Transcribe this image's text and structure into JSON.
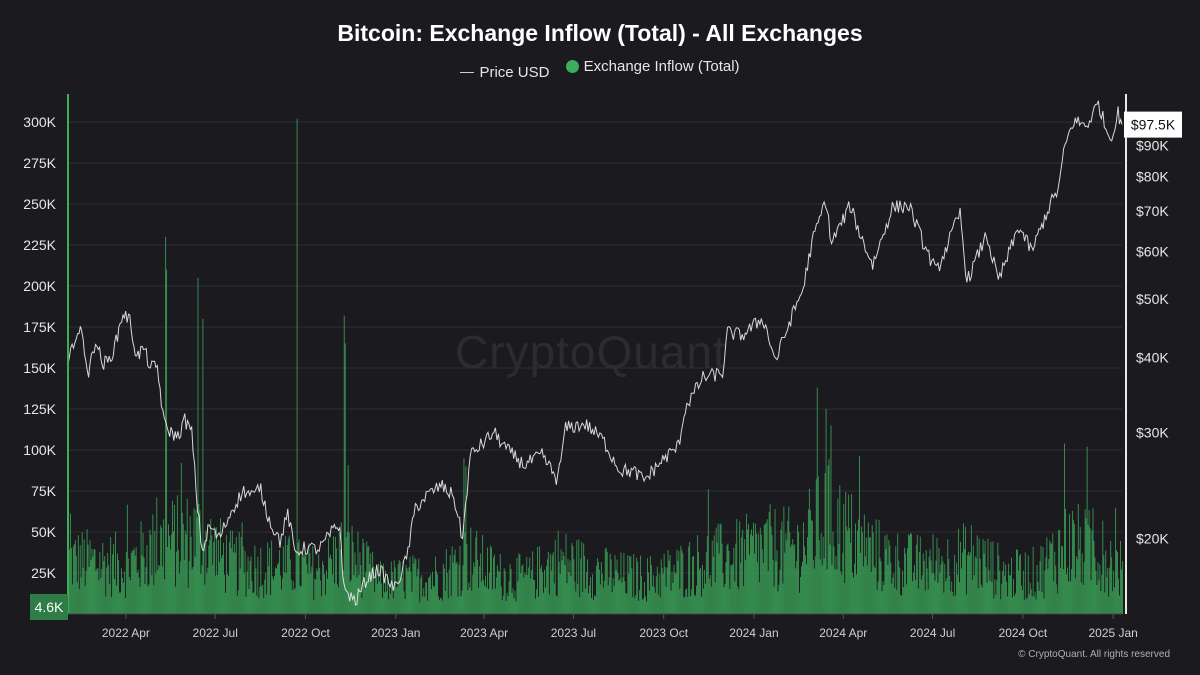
{
  "chart_data": {
    "type": "bar",
    "title": "Bitcoin: Exchange Inflow (Total) - All Exchanges",
    "watermark": "CryptoQuant",
    "footer": "© CryptoQuant. All rights reserved",
    "colors": {
      "background": "#1b1b1f",
      "inflow": "#3dac5c",
      "price": "#e8e8e8",
      "grid": "#2d2d33"
    },
    "x_range": [
      "2022-02-01",
      "2025-01-10"
    ],
    "x_ticks": [
      {
        "date": "2022-04-01",
        "label": "2022 Apr"
      },
      {
        "date": "2022-07-01",
        "label": "2022 Jul"
      },
      {
        "date": "2022-10-01",
        "label": "2022 Oct"
      },
      {
        "date": "2023-01-01",
        "label": "2023 Jan"
      },
      {
        "date": "2023-04-01",
        "label": "2023 Apr"
      },
      {
        "date": "2023-07-01",
        "label": "2023 Jul"
      },
      {
        "date": "2023-10-01",
        "label": "2023 Oct"
      },
      {
        "date": "2024-01-01",
        "label": "2024 Jan"
      },
      {
        "date": "2024-04-01",
        "label": "2024 Apr"
      },
      {
        "date": "2024-07-01",
        "label": "2024 Jul"
      },
      {
        "date": "2024-10-01",
        "label": "2024 Oct"
      },
      {
        "date": "2025-01-01",
        "label": "2025 Jan"
      }
    ],
    "left_axis": {
      "range": [
        0,
        300000
      ],
      "ticks": [
        {
          "value": 25000,
          "label": "25K"
        },
        {
          "value": 50000,
          "label": "50K"
        },
        {
          "value": 75000,
          "label": "75K"
        },
        {
          "value": 100000,
          "label": "100K"
        },
        {
          "value": 125000,
          "label": "125K"
        },
        {
          "value": 150000,
          "label": "150K"
        },
        {
          "value": 175000,
          "label": "175K"
        },
        {
          "value": 200000,
          "label": "200K"
        },
        {
          "value": 225000,
          "label": "225K"
        },
        {
          "value": 250000,
          "label": "250K"
        },
        {
          "value": 275000,
          "label": "275K"
        },
        {
          "value": 300000,
          "label": "300K"
        }
      ]
    },
    "right_axis": {
      "scale": "log",
      "range": [
        15500,
        100000
      ],
      "ticks": [
        {
          "value": 20000,
          "label": "$20K"
        },
        {
          "value": 30000,
          "label": "$30K"
        },
        {
          "value": 40000,
          "label": "$40K"
        },
        {
          "value": 50000,
          "label": "$50K"
        },
        {
          "value": 60000,
          "label": "$60K"
        },
        {
          "value": 70000,
          "label": "$70K"
        },
        {
          "value": 80000,
          "label": "$80K"
        },
        {
          "value": 90000,
          "label": "$90K"
        }
      ]
    },
    "last_values": {
      "inflow": 4600,
      "inflow_label": "4.6K",
      "price": 97500,
      "price_label": "$97.5K"
    },
    "series": [
      {
        "name": "Price USD",
        "type": "line",
        "points": [
          [
            "2022-02-01",
            38500
          ],
          [
            "2022-02-08",
            43500
          ],
          [
            "2022-02-15",
            44000
          ],
          [
            "2022-02-22",
            37500
          ],
          [
            "2022-03-01",
            43000
          ],
          [
            "2022-03-08",
            39000
          ],
          [
            "2022-03-15",
            39500
          ],
          [
            "2022-03-22",
            42500
          ],
          [
            "2022-03-29",
            47500
          ],
          [
            "2022-04-05",
            46000
          ],
          [
            "2022-04-12",
            40000
          ],
          [
            "2022-04-19",
            41500
          ],
          [
            "2022-04-26",
            38500
          ],
          [
            "2022-05-03",
            38500
          ],
          [
            "2022-05-10",
            31000
          ],
          [
            "2022-05-17",
            30000
          ],
          [
            "2022-05-24",
            29500
          ],
          [
            "2022-05-31",
            31500
          ],
          [
            "2022-06-07",
            30000
          ],
          [
            "2022-06-13",
            22500
          ],
          [
            "2022-06-18",
            19000
          ],
          [
            "2022-06-25",
            21000
          ],
          [
            "2022-07-05",
            20000
          ],
          [
            "2022-07-19",
            22500
          ],
          [
            "2022-07-30",
            24000
          ],
          [
            "2022-08-10",
            23500
          ],
          [
            "2022-08-15",
            24500
          ],
          [
            "2022-08-25",
            21500
          ],
          [
            "2022-09-05",
            19800
          ],
          [
            "2022-09-13",
            22000
          ],
          [
            "2022-09-20",
            19000
          ],
          [
            "2022-10-01",
            19300
          ],
          [
            "2022-10-15",
            19200
          ],
          [
            "2022-10-29",
            20600
          ],
          [
            "2022-11-05",
            21000
          ],
          [
            "2022-11-09",
            16500
          ],
          [
            "2022-11-21",
            15700
          ],
          [
            "2022-12-01",
            17000
          ],
          [
            "2022-12-14",
            17800
          ],
          [
            "2022-12-31",
            16500
          ],
          [
            "2023-01-12",
            18500
          ],
          [
            "2023-01-21",
            22500
          ],
          [
            "2023-02-01",
            23500
          ],
          [
            "2023-02-16",
            24500
          ],
          [
            "2023-03-01",
            23500
          ],
          [
            "2023-03-10",
            20000
          ],
          [
            "2023-03-18",
            27500
          ],
          [
            "2023-04-11",
            30000
          ],
          [
            "2023-04-25",
            28000
          ],
          [
            "2023-05-12",
            26500
          ],
          [
            "2023-05-30",
            27500
          ],
          [
            "2023-06-15",
            25000
          ],
          [
            "2023-06-23",
            30500
          ],
          [
            "2023-07-13",
            31000
          ],
          [
            "2023-07-31",
            29200
          ],
          [
            "2023-08-17",
            26000
          ],
          [
            "2023-09-01",
            25800
          ],
          [
            "2023-09-11",
            25000
          ],
          [
            "2023-09-30",
            27000
          ],
          [
            "2023-10-16",
            28500
          ],
          [
            "2023-10-23",
            33000
          ],
          [
            "2023-11-10",
            37000
          ],
          [
            "2023-11-30",
            37700
          ],
          [
            "2023-12-05",
            44000
          ],
          [
            "2023-12-20",
            43500
          ],
          [
            "2024-01-10",
            46500
          ],
          [
            "2024-01-23",
            39500
          ],
          [
            "2024-02-09",
            47000
          ],
          [
            "2024-02-20",
            52000
          ],
          [
            "2024-02-29",
            62000
          ],
          [
            "2024-03-14",
            73000
          ],
          [
            "2024-03-20",
            62000
          ],
          [
            "2024-04-08",
            71500
          ],
          [
            "2024-04-19",
            63500
          ],
          [
            "2024-05-01",
            57000
          ],
          [
            "2024-05-21",
            71000
          ],
          [
            "2024-06-07",
            71500
          ],
          [
            "2024-06-24",
            60500
          ],
          [
            "2024-07-05",
            55500
          ],
          [
            "2024-07-29",
            69500
          ],
          [
            "2024-08-05",
            53500
          ],
          [
            "2024-08-25",
            64000
          ],
          [
            "2024-09-06",
            53500
          ],
          [
            "2024-09-27",
            66000
          ],
          [
            "2024-10-10",
            60000
          ],
          [
            "2024-10-29",
            72000
          ],
          [
            "2024-11-06",
            76000
          ],
          [
            "2024-11-13",
            90000
          ],
          [
            "2024-11-22",
            99000
          ],
          [
            "2024-12-05",
            97000
          ],
          [
            "2024-12-17",
            106000
          ],
          [
            "2024-12-26",
            94500
          ],
          [
            "2025-01-01",
            94000
          ],
          [
            "2025-01-06",
            102000
          ],
          [
            "2025-01-10",
            97500
          ]
        ]
      },
      {
        "name": "Exchange Inflow (Total)",
        "type": "bar",
        "spikes": [
          [
            "2022-02-01",
            235000
          ],
          [
            "2022-05-11",
            230000
          ],
          [
            "2022-05-12",
            210000
          ],
          [
            "2022-06-13",
            205000
          ],
          [
            "2022-06-18",
            180000
          ],
          [
            "2022-09-22",
            302000
          ],
          [
            "2022-11-09",
            182000
          ],
          [
            "2022-11-10",
            165000
          ],
          [
            "2023-03-11",
            95000
          ],
          [
            "2023-03-13",
            90000
          ],
          [
            "2024-03-05",
            138000
          ],
          [
            "2024-03-14",
            125000
          ],
          [
            "2024-03-19",
            115000
          ],
          [
            "2024-11-12",
            104000
          ],
          [
            "2024-12-05",
            102000
          ]
        ],
        "baseline": [
          [
            "2022-02-01",
            42000
          ],
          [
            "2022-04-01",
            38000
          ],
          [
            "2022-05-10",
            55000
          ],
          [
            "2022-06-15",
            60000
          ],
          [
            "2022-07-15",
            40000
          ],
          [
            "2022-08-15",
            36000
          ],
          [
            "2022-09-15",
            38000
          ],
          [
            "2022-10-15",
            32000
          ],
          [
            "2022-11-10",
            50000
          ],
          [
            "2022-12-15",
            25000
          ],
          [
            "2023-01-15",
            28000
          ],
          [
            "2023-02-15",
            30000
          ],
          [
            "2023-03-15",
            45000
          ],
          [
            "2023-04-15",
            30000
          ],
          [
            "2023-05-15",
            28000
          ],
          [
            "2023-06-15",
            42000
          ],
          [
            "2023-07-15",
            35000
          ],
          [
            "2023-08-15",
            30000
          ],
          [
            "2023-09-15",
            28000
          ],
          [
            "2023-10-20",
            35000
          ],
          [
            "2023-11-15",
            42000
          ],
          [
            "2023-12-15",
            45000
          ],
          [
            "2024-01-15",
            52000
          ],
          [
            "2024-02-15",
            50000
          ],
          [
            "2024-03-15",
            75000
          ],
          [
            "2024-04-15",
            55000
          ],
          [
            "2024-05-15",
            42000
          ],
          [
            "2024-06-15",
            38000
          ],
          [
            "2024-07-15",
            40000
          ],
          [
            "2024-08-10",
            45000
          ],
          [
            "2024-09-15",
            30000
          ],
          [
            "2024-10-15",
            32000
          ],
          [
            "2024-11-15",
            55000
          ],
          [
            "2024-12-15",
            48000
          ],
          [
            "2025-01-10",
            35000
          ]
        ]
      }
    ]
  }
}
